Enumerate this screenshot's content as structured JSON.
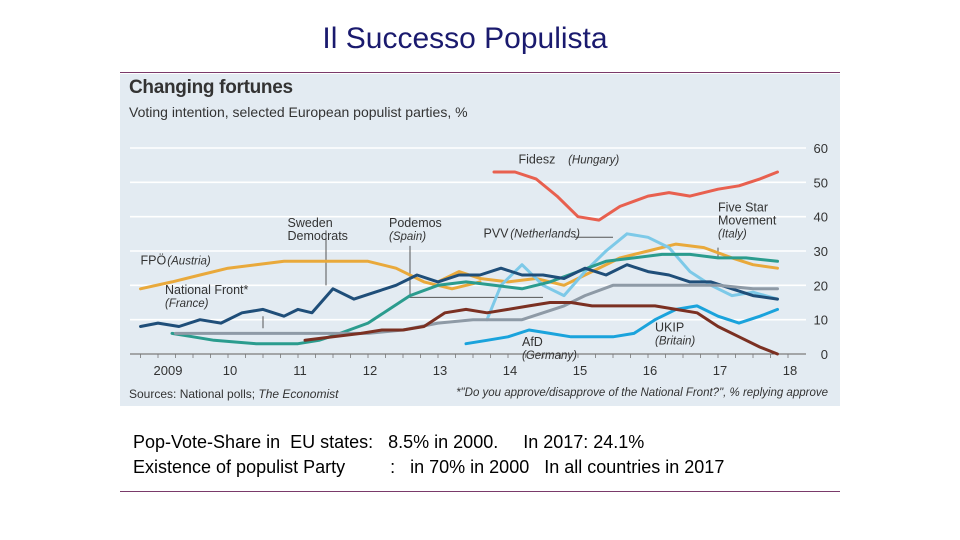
{
  "slide": {
    "title": "Il Successo Populista",
    "caption_line1": "Pop-Vote-Share in  EU states:   8.5% in 2000.     In 2017: 24.1%",
    "caption_line2": "Existence of populist Party         :   in 70% in 2000   In all countries in 2017"
  },
  "colors": {
    "panel_bg": "#e3ebf2",
    "gridline": "#ffffff",
    "rule": "#7a3a6a",
    "title_text": "#1a1a6e"
  },
  "chart_data": {
    "type": "line",
    "title": "Changing fortunes",
    "subtitle": "Voting intention, selected European populist parties, %",
    "source_prefix": "Sources: National polls; ",
    "source_italic": "The Economist",
    "footnote": "*\"Do you approve/disapprove of the National Front?\", % replying approve",
    "xlim": [
      2008.7,
      2018.0
    ],
    "ylim": [
      0,
      60
    ],
    "x_ticks": [
      {
        "x": 2009,
        "label": "2009"
      },
      {
        "x": 2010,
        "label": "10"
      },
      {
        "x": 2011,
        "label": "11"
      },
      {
        "x": 2012,
        "label": "12"
      },
      {
        "x": 2013,
        "label": "13"
      },
      {
        "x": 2014,
        "label": "14"
      },
      {
        "x": 2015,
        "label": "15"
      },
      {
        "x": 2016,
        "label": "16"
      },
      {
        "x": 2017,
        "label": "17"
      },
      {
        "x": 2018,
        "label": "18"
      }
    ],
    "y_ticks": [
      0,
      10,
      20,
      30,
      40,
      50,
      60
    ],
    "grid": true,
    "series": [
      {
        "name": "Fidesz",
        "note": "(Hungary)",
        "color": "#e8604f",
        "x": [
          2013.8,
          2014.1,
          2014.4,
          2014.7,
          2015.0,
          2015.3,
          2015.6,
          2016.0,
          2016.3,
          2016.6,
          2017.0,
          2017.3,
          2017.6,
          2017.85
        ],
        "y": [
          53,
          53,
          51,
          46,
          40,
          39,
          43,
          46,
          47,
          46,
          48,
          49,
          51,
          53
        ]
      },
      {
        "name": "Five Star Movement",
        "note": "(Italy)",
        "color": "#e9a93b",
        "x": [
          2013.0,
          2013.3,
          2013.6,
          2014.0,
          2014.4,
          2014.8,
          2015.2,
          2015.6,
          2016.0,
          2016.4,
          2016.8,
          2017.2,
          2017.5,
          2017.85
        ],
        "y": [
          21,
          24,
          22,
          21,
          22,
          20,
          24,
          28,
          30,
          32,
          31,
          28,
          26,
          25
        ]
      },
      {
        "name": "FPÖ",
        "note": "(Austria)",
        "color": "#e9a93b",
        "x": [
          2008.75,
          2009.2,
          2009.6,
          2010.0,
          2010.4,
          2010.8,
          2011.2,
          2011.6,
          2012.0,
          2012.4,
          2012.8,
          2013.2,
          2013.6
        ],
        "y": [
          19,
          21,
          23,
          25,
          26,
          27,
          27,
          27,
          27,
          25,
          21,
          19,
          21
        ]
      },
      {
        "name": "PVV",
        "note": "(Netherlands)",
        "color": "#7dc9e8",
        "x": [
          2013.7,
          2013.9,
          2014.2,
          2014.5,
          2014.8,
          2015.1,
          2015.4,
          2015.7,
          2016.0,
          2016.3,
          2016.6,
          2016.9,
          2017.2,
          2017.5,
          2017.85
        ],
        "y": [
          10,
          20,
          26,
          20,
          17,
          24,
          30,
          35,
          34,
          31,
          24,
          20,
          17,
          18,
          16
        ]
      },
      {
        "name": "Sweden Democrats",
        "note": "",
        "color": "#2b9c8e",
        "x": [
          2009.2,
          2009.5,
          2009.8,
          2010.1,
          2010.4,
          2010.7,
          2011.0,
          2011.3,
          2011.6,
          2012.0,
          2012.3,
          2012.6,
          2013.0,
          2013.4,
          2013.8,
          2014.2,
          2014.6,
          2015.0,
          2015.4,
          2015.8,
          2016.2,
          2016.6,
          2017.0,
          2017.4,
          2017.85
        ],
        "y": [
          6,
          5,
          4,
          3.5,
          3,
          3,
          3,
          4,
          6,
          9,
          13,
          17,
          20,
          21,
          20,
          19,
          21,
          24,
          27,
          28,
          29,
          29,
          28,
          28,
          27
        ]
      },
      {
        "name": "National Front*",
        "note": "(France)",
        "color": "#1f4e79",
        "x": [
          2008.75,
          2009.0,
          2009.3,
          2009.6,
          2009.9,
          2010.2,
          2010.5,
          2010.8,
          2011.0,
          2011.2,
          2011.5,
          2011.8,
          2012.1,
          2012.4,
          2012.7,
          2013.0,
          2013.3,
          2013.6,
          2013.9,
          2014.2,
          2014.5,
          2014.8,
          2015.1,
          2015.4,
          2015.7,
          2016.0,
          2016.3,
          2016.6,
          2016.9,
          2017.2,
          2017.5,
          2017.85
        ],
        "y": [
          8,
          9,
          8,
          10,
          9,
          12,
          13,
          11,
          13,
          12,
          19,
          16,
          18,
          20,
          23,
          21,
          23,
          23,
          25,
          23,
          23,
          22,
          25,
          23,
          26,
          24,
          23,
          21,
          21,
          19,
          17,
          16
        ]
      },
      {
        "name": "Podemos",
        "note": "(Spain)",
        "color": "#8e9aa6",
        "x": [
          2009.25,
          2010.0,
          2011.0,
          2012.0,
          2012.5,
          2013.0,
          2013.5,
          2014.0,
          2014.2,
          2014.5,
          2014.8,
          2015.1,
          2015.5,
          2016.0,
          2016.5,
          2017.0,
          2017.5,
          2017.85
        ],
        "y": [
          6,
          6,
          6,
          6,
          7,
          9,
          10,
          10,
          10,
          12,
          14,
          17,
          20,
          20,
          20,
          20,
          19,
          19
        ]
      },
      {
        "name": "AfD",
        "note": "(Germany)",
        "color": "#1aa3dc",
        "x": [
          2013.4,
          2013.7,
          2014.0,
          2014.3,
          2014.6,
          2014.9,
          2015.2,
          2015.5,
          2015.8,
          2016.1,
          2016.4,
          2016.7,
          2017.0,
          2017.3,
          2017.6,
          2017.85
        ],
        "y": [
          3,
          4,
          5,
          7,
          6,
          5,
          5,
          5,
          6,
          10,
          13,
          14,
          11,
          9,
          11,
          13
        ]
      },
      {
        "name": "UKIP",
        "note": "(Britain)",
        "color": "#7b3022",
        "x": [
          2011.1,
          2011.5,
          2011.9,
          2012.2,
          2012.5,
          2012.8,
          2013.1,
          2013.4,
          2013.7,
          2014.0,
          2014.3,
          2014.6,
          2014.9,
          2015.2,
          2015.5,
          2015.8,
          2016.1,
          2016.4,
          2016.7,
          2017.0,
          2017.3,
          2017.6,
          2017.85
        ],
        "y": [
          4,
          5,
          6,
          7,
          7,
          8,
          12,
          13,
          12,
          13,
          14,
          15,
          15,
          14,
          14,
          14,
          14,
          13,
          12,
          8,
          5,
          2,
          0
        ]
      }
    ],
    "annotations": [
      {
        "name": "Fidesz",
        "note": "(Hungary)",
        "x": 2014.15,
        "y": 55.5
      },
      {
        "name": "Five Star",
        "note2": "Movement",
        "note": "(Italy)",
        "x": 2017.0,
        "y": 41.5
      },
      {
        "name": "Sweden",
        "note2": "Democrats",
        "note": "",
        "x": 2010.85,
        "y": 37
      },
      {
        "name": "Podemos",
        "note": "(Spain)",
        "x": 2012.3,
        "y": 37
      },
      {
        "name": "PVV",
        "note": "(Netherlands)",
        "x": 2013.65,
        "y": 34
      },
      {
        "name": "FPÖ",
        "note": "(Austria)",
        "x": 2008.75,
        "y": 26
      },
      {
        "name": "National Front*",
        "note": "(France)",
        "x": 2009.1,
        "y": 17.5
      },
      {
        "name": "UKIP",
        "note": "(Britain)",
        "x": 2016.1,
        "y": 6.5
      },
      {
        "name": "AfD",
        "note": "(Germany)",
        "x": 2014.2,
        "y": 2.3
      }
    ]
  }
}
